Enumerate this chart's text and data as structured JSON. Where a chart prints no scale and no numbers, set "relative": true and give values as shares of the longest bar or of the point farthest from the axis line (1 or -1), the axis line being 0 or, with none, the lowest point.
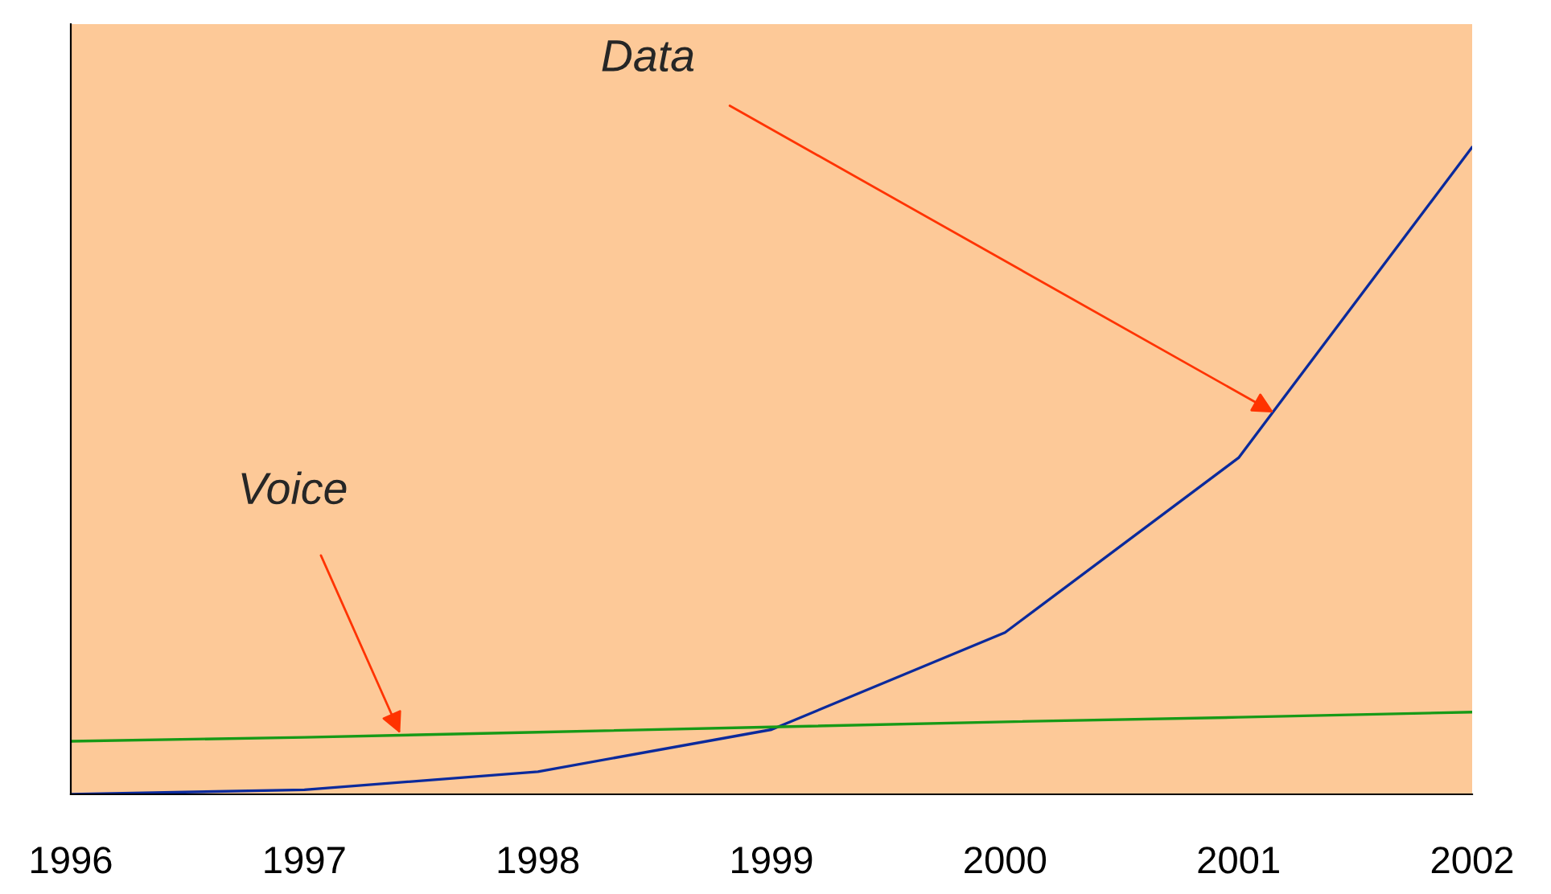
{
  "chart_data": {
    "type": "line",
    "relative": true,
    "x": [
      1996,
      1997,
      1998,
      1999,
      2000,
      2001,
      2002
    ],
    "xlim": [
      1996,
      2002
    ],
    "xticks": [
      1996,
      1997,
      1998,
      1999,
      2000,
      2001,
      2002
    ],
    "series": [
      {
        "color": "#0b2a9c",
        "values": [
          0,
          0.007,
          0.035,
          0.1,
          0.25,
          0.52,
          1
        ]
      },
      {
        "color": "#179a17",
        "values": [
          0.082,
          0.088,
          0.096,
          0.104,
          0.112,
          0.119,
          0.127
        ]
      }
    ],
    "annotations": [
      {
        "text": "Data",
        "x": 2001.15,
        "y": 0.59
      },
      {
        "text": "Voice",
        "x": 1997.41,
        "y": 0.094
      }
    ],
    "grid": false,
    "legend": false,
    "marker": "none",
    "line_style": "solid"
  }
}
